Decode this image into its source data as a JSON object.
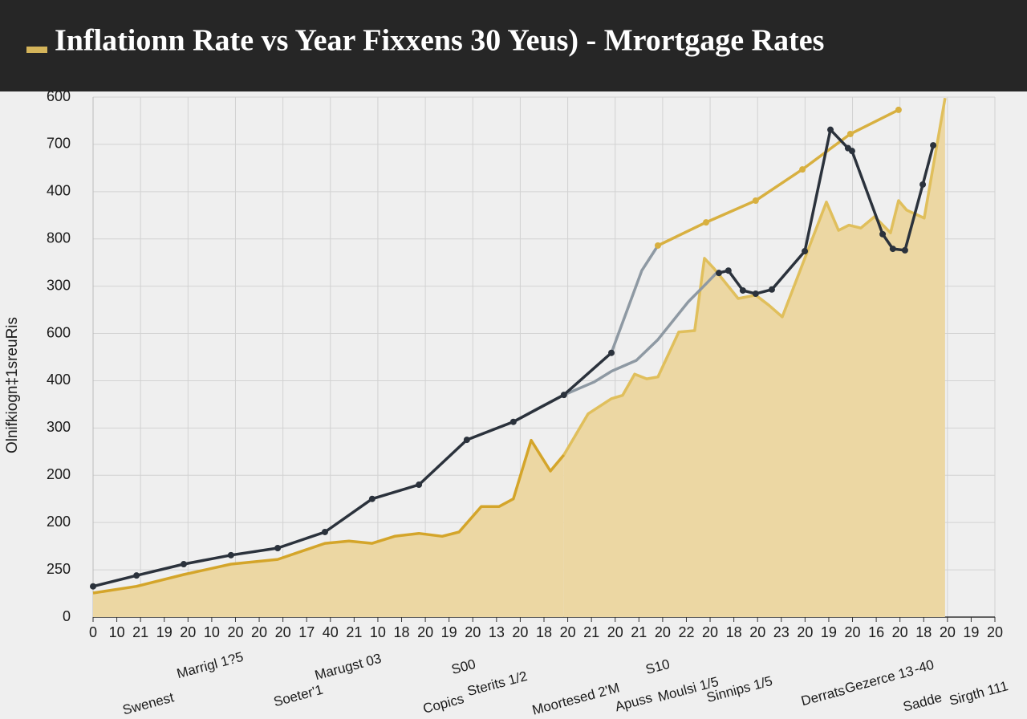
{
  "chart_data": {
    "type": "line",
    "title": "Inflationn Rate vs Year Fixxens 30 Yeus) - Mrortgage Rates",
    "ylabel": "Olnifkiogn‡1sreuRis",
    "xlim": [
      0,
      38
    ],
    "ylim": [
      0,
      11
    ],
    "grid": true,
    "yticks": [
      {
        "value": 0,
        "label": "0"
      },
      {
        "value": 1,
        "label": "250"
      },
      {
        "value": 2,
        "label": "200"
      },
      {
        "value": 3,
        "label": "200"
      },
      {
        "value": 4,
        "label": "300"
      },
      {
        "value": 5,
        "label": "400"
      },
      {
        "value": 6,
        "label": "600"
      },
      {
        "value": 7,
        "label": "300"
      },
      {
        "value": 8,
        "label": "800"
      },
      {
        "value": 9,
        "label": "400"
      },
      {
        "value": 10,
        "label": "700"
      },
      {
        "value": 11,
        "label": "600"
      }
    ],
    "xticks": [
      {
        "value": 0,
        "label": "0"
      },
      {
        "value": 1,
        "label": "10"
      },
      {
        "value": 2,
        "label": "21"
      },
      {
        "value": 3,
        "label": "19"
      },
      {
        "value": 4,
        "label": "20"
      },
      {
        "value": 5,
        "label": "10"
      },
      {
        "value": 6,
        "label": "20"
      },
      {
        "value": 7,
        "label": "20"
      },
      {
        "value": 8,
        "label": "20"
      },
      {
        "value": 9,
        "label": "17"
      },
      {
        "value": 10,
        "label": "40"
      },
      {
        "value": 11,
        "label": "21"
      },
      {
        "value": 12,
        "label": "10"
      },
      {
        "value": 13,
        "label": "18"
      },
      {
        "value": 14,
        "label": "20"
      },
      {
        "value": 15,
        "label": "19"
      },
      {
        "value": 16,
        "label": "20"
      },
      {
        "value": 17,
        "label": "13"
      },
      {
        "value": 18,
        "label": "20"
      },
      {
        "value": 19,
        "label": "18"
      },
      {
        "value": 20,
        "label": "20"
      },
      {
        "value": 21,
        "label": "21"
      },
      {
        "value": 22,
        "label": "20"
      },
      {
        "value": 23,
        "label": "21"
      },
      {
        "value": 24,
        "label": "20"
      },
      {
        "value": 25,
        "label": "22"
      },
      {
        "value": 26,
        "label": "20"
      },
      {
        "value": 27,
        "label": "18"
      },
      {
        "value": 28,
        "label": "20"
      },
      {
        "value": 29,
        "label": "23"
      },
      {
        "value": 30,
        "label": "20"
      },
      {
        "value": 31,
        "label": "19"
      },
      {
        "value": 32,
        "label": "20"
      },
      {
        "value": 33,
        "label": "16"
      },
      {
        "value": 34,
        "label": "20"
      },
      {
        "value": 35,
        "label": "18"
      },
      {
        "value": 36,
        "label": "20"
      },
      {
        "value": 37,
        "label": "19"
      },
      {
        "value": 38,
        "label": "20"
      }
    ],
    "annotations": [
      "Swenest",
      "Marrigl 1?5",
      "Soeter'1",
      "Marugst 03",
      "S00",
      "Copics",
      "Sterits 1/2",
      "Moortesed 2'M",
      "S10",
      "Apuss",
      "Moulsi 1/5",
      "Sinnips 1/5",
      "Derrats",
      "Gezerce 13",
      "-40",
      "Sadde",
      "Sirgth 111"
    ],
    "series": [
      {
        "color": "#d4a52a",
        "fill": "#ecd7a3",
        "x": [
          0,
          1.83,
          3.82,
          5.81,
          7.78,
          9.77,
          10.78,
          11.76,
          12.71,
          13.73,
          14.71,
          15.42,
          16.36,
          17.11,
          17.71,
          18.46,
          19.27,
          19.84
        ],
        "values": [
          0.51,
          0.65,
          0.9,
          1.12,
          1.22,
          1.56,
          1.61,
          1.56,
          1.71,
          1.77,
          1.71,
          1.8,
          2.34,
          2.34,
          2.5,
          3.74,
          3.09,
          3.43
        ]
      },
      {
        "color": "#e0bf5c",
        "fill": "#ecd7a3",
        "x": [
          19.84,
          20.86,
          21.84,
          22.31,
          22.82,
          23.33,
          23.8,
          24.68,
          25.35,
          25.76,
          26.17,
          27.18,
          27.92,
          28.47,
          29.04,
          30.9,
          31.41,
          31.85,
          32.35,
          32.93,
          33.6,
          33.94,
          34.28,
          35.02,
          35.9
        ],
        "values": [
          3.43,
          4.3,
          4.62,
          4.69,
          5.14,
          5.04,
          5.08,
          6.03,
          6.06,
          7.59,
          7.37,
          6.74,
          6.81,
          6.6,
          6.35,
          8.78,
          8.18,
          8.29,
          8.23,
          8.47,
          8.13,
          8.81,
          8.61,
          8.44,
          10.98
        ]
      },
      {
        "color": "#8e99a3",
        "x": [
          17.71,
          18.73,
          19.84,
          21.1,
          21.84,
          22.89,
          23.8,
          25.08,
          25.83,
          26.27,
          null,
          21.84,
          23.12,
          23.8
        ],
        "values": [
          4.13,
          4.41,
          4.7,
          4.97,
          5.2,
          5.43,
          5.87,
          6.67,
          7.05,
          7.28,
          null,
          5.59,
          7.33,
          7.86
        ]
      },
      {
        "color": "#d8b040",
        "markers": true,
        "x": [
          23.8,
          25.83,
          27.92,
          29.89,
          31.91,
          33.94
        ],
        "values": [
          7.86,
          8.35,
          8.81,
          9.47,
          10.22,
          10.73
        ]
      },
      {
        "color": "#2b323c",
        "markers": true,
        "x": [
          0,
          1.83,
          3.82,
          5.81,
          7.78,
          9.77,
          11.76,
          13.73,
          15.75,
          17.71,
          19.84,
          21.84,
          null,
          26.37,
          26.77,
          27.38,
          27.92,
          28.6,
          29.99,
          31.07,
          31.81,
          31.98,
          33.27,
          33.7,
          34.21,
          34.96,
          35.4
        ],
        "values": [
          0.65,
          0.88,
          1.12,
          1.31,
          1.46,
          1.8,
          2.5,
          2.8,
          3.75,
          4.13,
          4.7,
          5.59,
          null,
          7.28,
          7.33,
          6.91,
          6.84,
          6.93,
          7.74,
          10.31,
          9.92,
          9.86,
          8.1,
          7.79,
          7.76,
          9.15,
          9.98
        ]
      }
    ]
  }
}
